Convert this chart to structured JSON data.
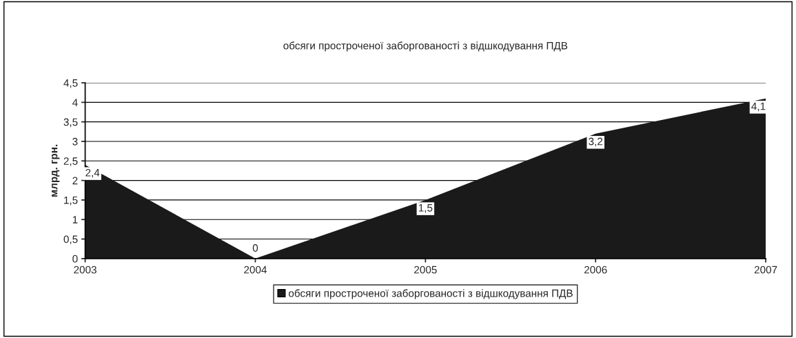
{
  "chart_data": {
    "type": "area",
    "title": "обсяги простроченої заборгованості з відшкодування ПДВ",
    "ylabel": "млрд. грн.",
    "categories": [
      "2003",
      "2004",
      "2005",
      "2006",
      "2007"
    ],
    "series": [
      {
        "name": "обсяги простроченої заборгованості з відшкодування ПДВ",
        "color": "#1a1a1a",
        "values": [
          2.4,
          0,
          1.5,
          3.2,
          4.1
        ],
        "value_labels": [
          "2,4",
          "0",
          "1,5",
          "3,2",
          "4,1"
        ]
      }
    ],
    "ylim": [
      0,
      4.5
    ],
    "yticks": [
      0,
      {
        "value": 0.5,
        "label": "0,5"
      },
      1,
      {
        "value": 1.5,
        "label": "1,5"
      },
      2,
      {
        "value": 2.5,
        "label": "2,5"
      },
      3,
      {
        "value": 3.5,
        "label": "3,5"
      },
      4,
      {
        "value": 4.5,
        "label": "4,5"
      }
    ],
    "grid": "y",
    "legend": "bottom"
  }
}
